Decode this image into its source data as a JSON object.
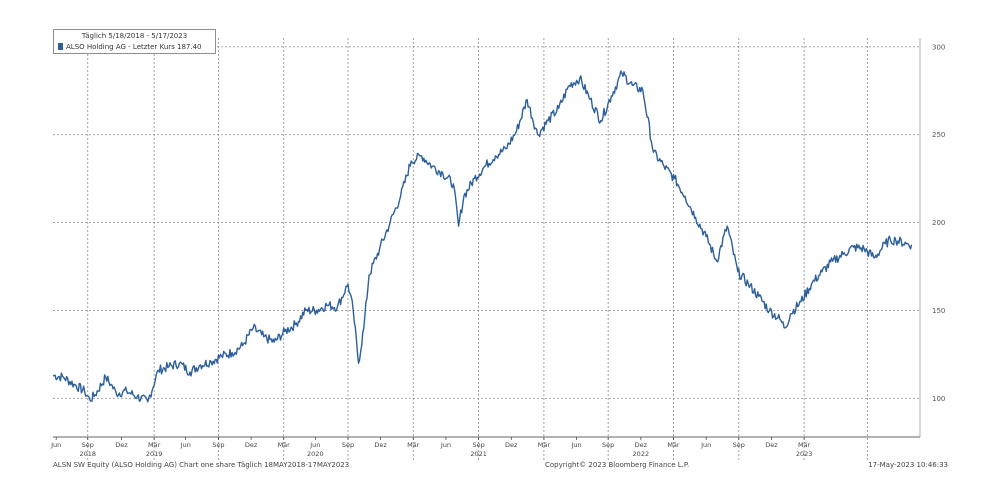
{
  "chart_data": {
    "type": "line",
    "title": "",
    "legend_date_range": "Täglich 5/18/2018 - 5/17/2023",
    "series": [
      {
        "name": "ALSO Holding AG - Letzter Kurs 187.40",
        "color": "#2c5f9b",
        "points": [
          [
            0,
            113
          ],
          [
            1,
            112
          ],
          [
            2,
            108
          ],
          [
            3,
            104
          ],
          [
            3.5,
            99
          ],
          [
            4,
            102
          ],
          [
            5,
            112
          ],
          [
            5.5,
            108
          ],
          [
            6,
            103
          ],
          [
            7,
            104
          ],
          [
            8,
            101
          ],
          [
            9,
            98
          ],
          [
            10,
            116
          ],
          [
            11,
            118
          ],
          [
            12,
            120
          ],
          [
            13,
            115
          ],
          [
            14,
            119
          ],
          [
            15,
            121
          ],
          [
            16,
            124
          ],
          [
            17,
            126
          ],
          [
            18,
            130
          ],
          [
            19,
            140
          ],
          [
            20,
            135
          ],
          [
            21,
            132
          ],
          [
            22,
            138
          ],
          [
            23,
            142
          ],
          [
            24,
            150
          ],
          [
            25,
            150
          ],
          [
            26,
            153
          ],
          [
            27,
            152
          ],
          [
            28,
            165
          ],
          [
            28.5,
            150
          ],
          [
            29,
            120
          ],
          [
            29.5,
            140
          ],
          [
            30,
            170
          ],
          [
            31,
            185
          ],
          [
            32,
            200
          ],
          [
            33,
            215
          ],
          [
            34,
            235
          ],
          [
            35,
            238
          ],
          [
            36,
            232
          ],
          [
            37,
            228
          ],
          [
            38,
            222
          ],
          [
            38.5,
            198
          ],
          [
            39,
            215
          ],
          [
            40,
            225
          ],
          [
            41,
            232
          ],
          [
            42,
            238
          ],
          [
            43,
            242
          ],
          [
            44,
            252
          ],
          [
            45,
            270
          ],
          [
            46,
            250
          ],
          [
            47,
            258
          ],
          [
            48,
            265
          ],
          [
            49,
            278
          ],
          [
            50,
            282
          ],
          [
            51,
            270
          ],
          [
            52,
            258
          ],
          [
            53,
            272
          ],
          [
            54,
            285
          ],
          [
            55,
            278
          ],
          [
            56,
            275
          ],
          [
            57,
            240
          ],
          [
            58,
            232
          ],
          [
            59,
            225
          ],
          [
            60,
            215
          ],
          [
            61,
            203
          ],
          [
            62,
            192
          ],
          [
            63,
            178
          ],
          [
            64,
            198
          ],
          [
            65,
            172
          ],
          [
            66,
            165
          ],
          [
            67,
            158
          ],
          [
            68,
            150
          ],
          [
            69,
            145
          ],
          [
            69.5,
            140
          ],
          [
            70,
            148
          ],
          [
            71,
            155
          ],
          [
            72,
            165
          ],
          [
            73,
            172
          ],
          [
            74,
            178
          ],
          [
            75,
            182
          ],
          [
            76,
            186
          ],
          [
            77,
            185
          ],
          [
            78,
            180
          ],
          [
            79,
            188
          ],
          [
            79.5,
            190
          ],
          [
            80,
            190
          ],
          [
            81,
            188
          ],
          [
            81.5,
            187.4
          ]
        ]
      }
    ],
    "x_tick_labels": [
      {
        "m": 0.3,
        "label": "Jun"
      },
      {
        "m": 3.3,
        "label": "Sep"
      },
      {
        "m": 6.5,
        "label": "Dez"
      },
      {
        "m": 9.6,
        "label": "Mär"
      },
      {
        "m": 12.6,
        "label": "Jun"
      },
      {
        "m": 15.7,
        "label": "Sep"
      },
      {
        "m": 18.8,
        "label": "Dez"
      },
      {
        "m": 21.9,
        "label": "Mär"
      },
      {
        "m": 24.9,
        "label": "Jun"
      },
      {
        "m": 28.0,
        "label": "Sep"
      },
      {
        "m": 31.1,
        "label": "Dez"
      },
      {
        "m": 34.2,
        "label": "Mär"
      },
      {
        "m": 37.3,
        "label": "Jun"
      },
      {
        "m": 40.4,
        "label": "Sep"
      },
      {
        "m": 43.5,
        "label": "Dez"
      },
      {
        "m": 46.6,
        "label": "Mär"
      },
      {
        "m": 49.7,
        "label": "Jun"
      },
      {
        "m": 52.7,
        "label": "Sep"
      },
      {
        "m": 55.8,
        "label": "Dez"
      },
      {
        "m": 58.9,
        "label": "Mär"
      },
      {
        "m": 62.0,
        "label": "Jun"
      },
      {
        "m": 65.1,
        "label": "Sep"
      },
      {
        "m": 68.2,
        "label": "Dez"
      },
      {
        "m": 71.3,
        "label": "Mär"
      }
    ],
    "year_labels": [
      {
        "m": 3.3,
        "label": "2018"
      },
      {
        "m": 9.6,
        "label": "2019"
      },
      {
        "m": 24.9,
        "label": "2020"
      },
      {
        "m": 40.4,
        "label": "2021"
      },
      {
        "m": 55.8,
        "label": "2022"
      },
      {
        "m": 71.3,
        "label": "2023"
      }
    ],
    "gridline_months": [
      3.3,
      9.6,
      15.7,
      21.9,
      28.0,
      34.2,
      40.4,
      46.6,
      52.7,
      58.9,
      65.1,
      71.3,
      77.3
    ],
    "y_ticks": [
      100,
      150,
      200,
      250,
      300
    ],
    "xlim": [
      0,
      82.3
    ],
    "ylim": [
      78,
      305
    ],
    "grid": true
  },
  "footer": {
    "left": "ALSN SW Equity (ALSO Holding AG) Chart one share Täglich 18MAY2018-17MAY2023",
    "center": "Copyright© 2023 Bloomberg Finance L.P.",
    "right": "17-May-2023 10:46:33"
  }
}
